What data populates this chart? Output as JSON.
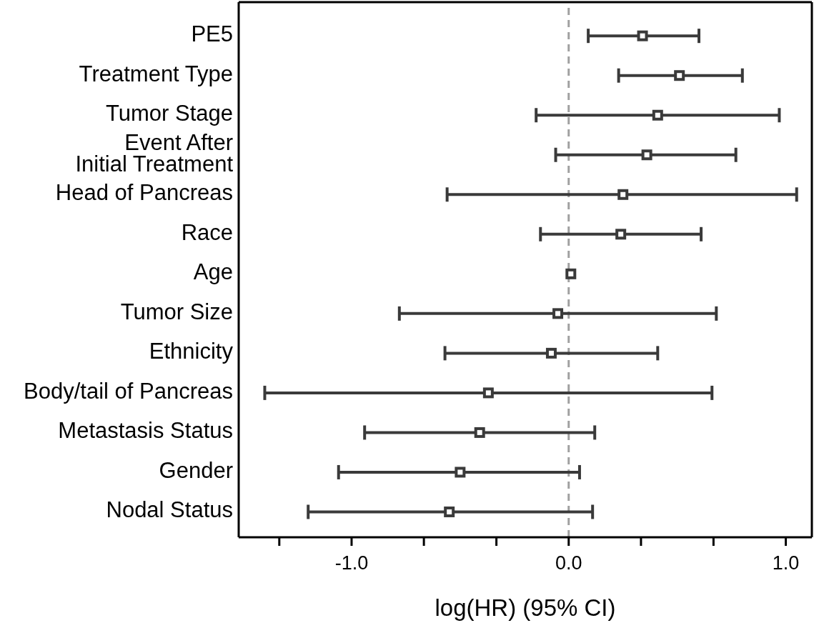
{
  "chart_data": {
    "type": "scatter",
    "orientation": "horizontal",
    "xlabel": "log(HR) (95% CI)",
    "categories": [
      "PE5",
      "Treatment Type",
      "Tumor Stage",
      "Event After\nInitial Treatment",
      "Head of Pancreas",
      "Race",
      "Age",
      "Tumor Size",
      "Ethnicity",
      "Body/tail of Pancreas",
      "Metastasis Status",
      "Gender",
      "Nodal Status"
    ],
    "series": [
      {
        "color": "#3a3a3a",
        "values": [
          0.34,
          0.51,
          0.41,
          0.36,
          0.25,
          0.24,
          0.01,
          -0.05,
          -0.08,
          -0.37,
          -0.41,
          -0.5,
          -0.55
        ],
        "errors": [
          [
            0.09,
            0.6
          ],
          [
            0.23,
            0.8
          ],
          [
            -0.15,
            0.97
          ],
          [
            -0.06,
            0.77
          ],
          [
            -0.56,
            1.05
          ],
          [
            -0.13,
            0.61
          ],
          null,
          [
            -0.78,
            0.68
          ],
          [
            -0.57,
            0.41
          ],
          [
            -1.4,
            0.66
          ],
          [
            -0.94,
            0.12
          ],
          [
            -1.06,
            0.05
          ],
          [
            -1.2,
            0.11
          ]
        ]
      }
    ],
    "xlim": [
      -1.52,
      1.12
    ],
    "xticks": [
      {
        "value": -1.333,
        "label": null
      },
      {
        "value": -1,
        "label": "-1.0"
      },
      {
        "value": -0.667,
        "label": null
      },
      {
        "value": -0.333,
        "label": null
      },
      {
        "value": 0,
        "label": "0.0"
      },
      {
        "value": 0.333,
        "label": null
      },
      {
        "value": 0.667,
        "label": null
      },
      {
        "value": 1,
        "label": "1.0"
      }
    ],
    "ref_lines": [
      {
        "axis": "x",
        "value": 0,
        "color": "#a0a0a0",
        "line_style": "dashed"
      }
    ],
    "marker": "square",
    "grid": false
  }
}
